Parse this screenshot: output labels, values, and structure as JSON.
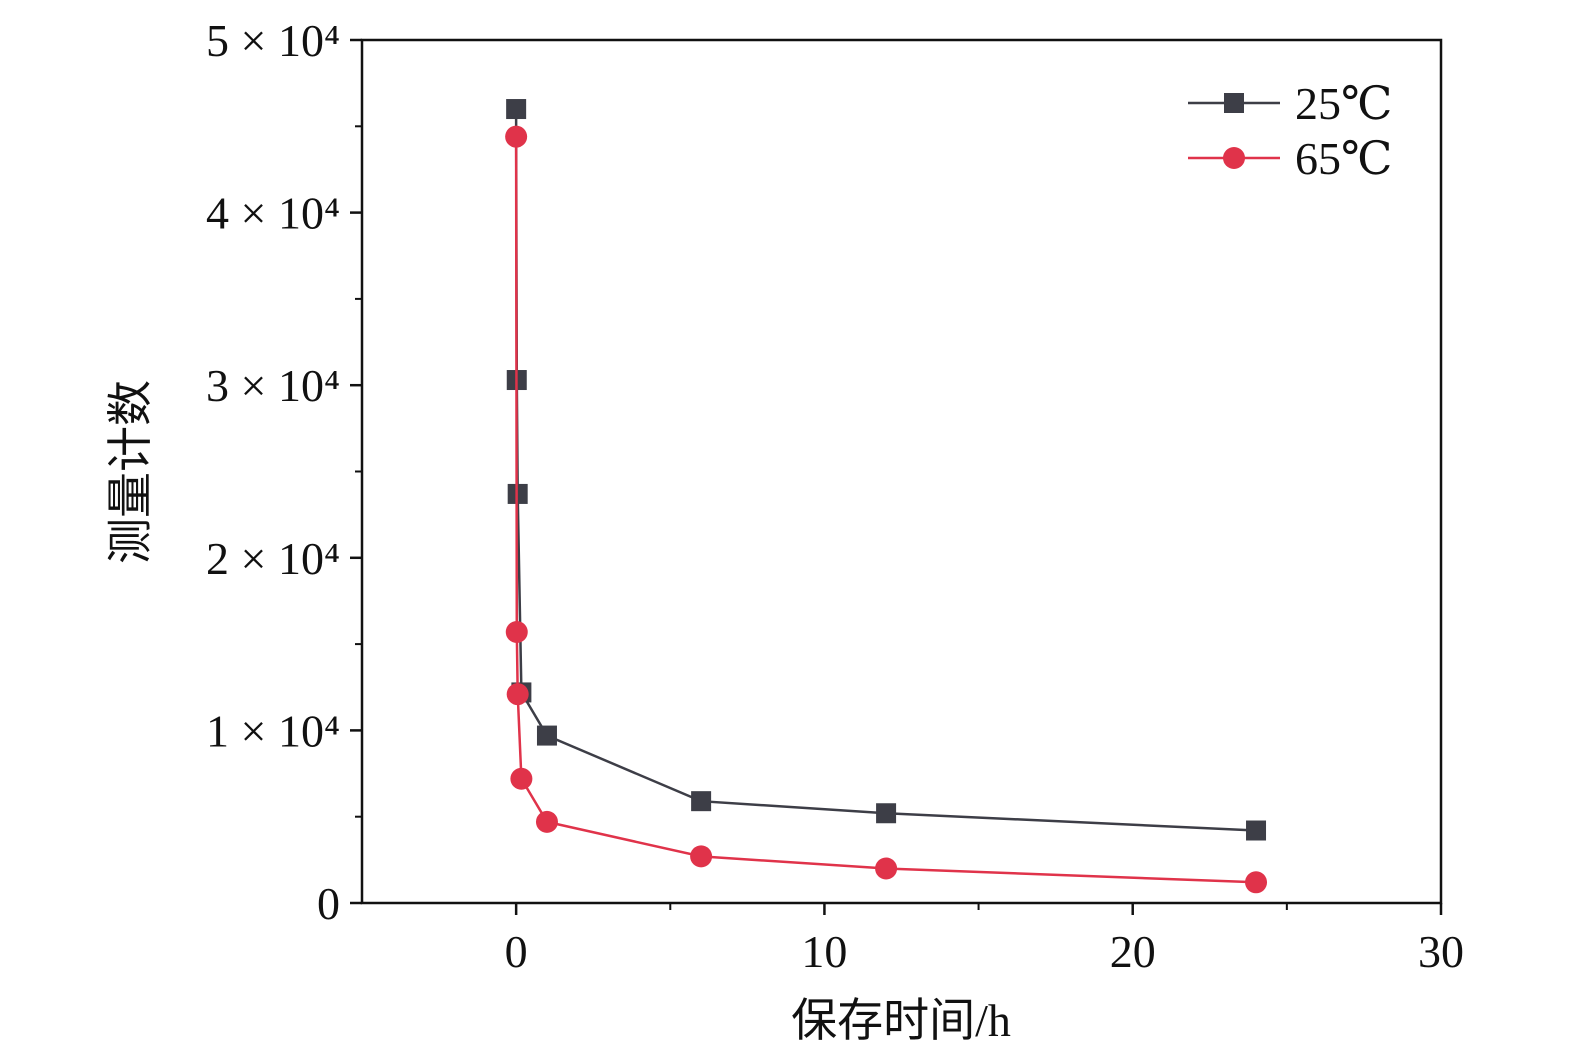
{
  "chart_data": {
    "type": "line",
    "xlabel": "保存时间/h",
    "ylabel": "测量计数",
    "xlim": [
      -5,
      30
    ],
    "ylim": [
      0,
      50000
    ],
    "xticks": [
      0,
      10,
      20,
      30
    ],
    "xtick_labels": [
      "0",
      "10",
      "20",
      "30"
    ],
    "yticks": [
      0,
      10000,
      20000,
      30000,
      40000,
      50000
    ],
    "ytick_labels": [
      "0",
      "1 × 10⁴",
      "2 × 10⁴",
      "3 × 10⁴",
      "4 × 10⁴",
      "5 × 10⁴"
    ],
    "grid": false,
    "legend": "top-right",
    "series": [
      {
        "name": "25℃",
        "marker": "square",
        "color": "#3d3e47",
        "x": [
          0,
          0.02,
          0.05,
          0.17,
          1,
          6,
          12,
          24
        ],
        "y": [
          46000,
          30300,
          23700,
          12200,
          9700,
          5900,
          5200,
          4200
        ]
      },
      {
        "name": "65℃",
        "marker": "circle",
        "color": "#e0334a",
        "x": [
          0,
          0.02,
          0.05,
          0.17,
          1,
          6,
          12,
          24
        ],
        "y": [
          44400,
          15700,
          12100,
          7200,
          4700,
          2700,
          2000,
          1200
        ]
      }
    ]
  }
}
